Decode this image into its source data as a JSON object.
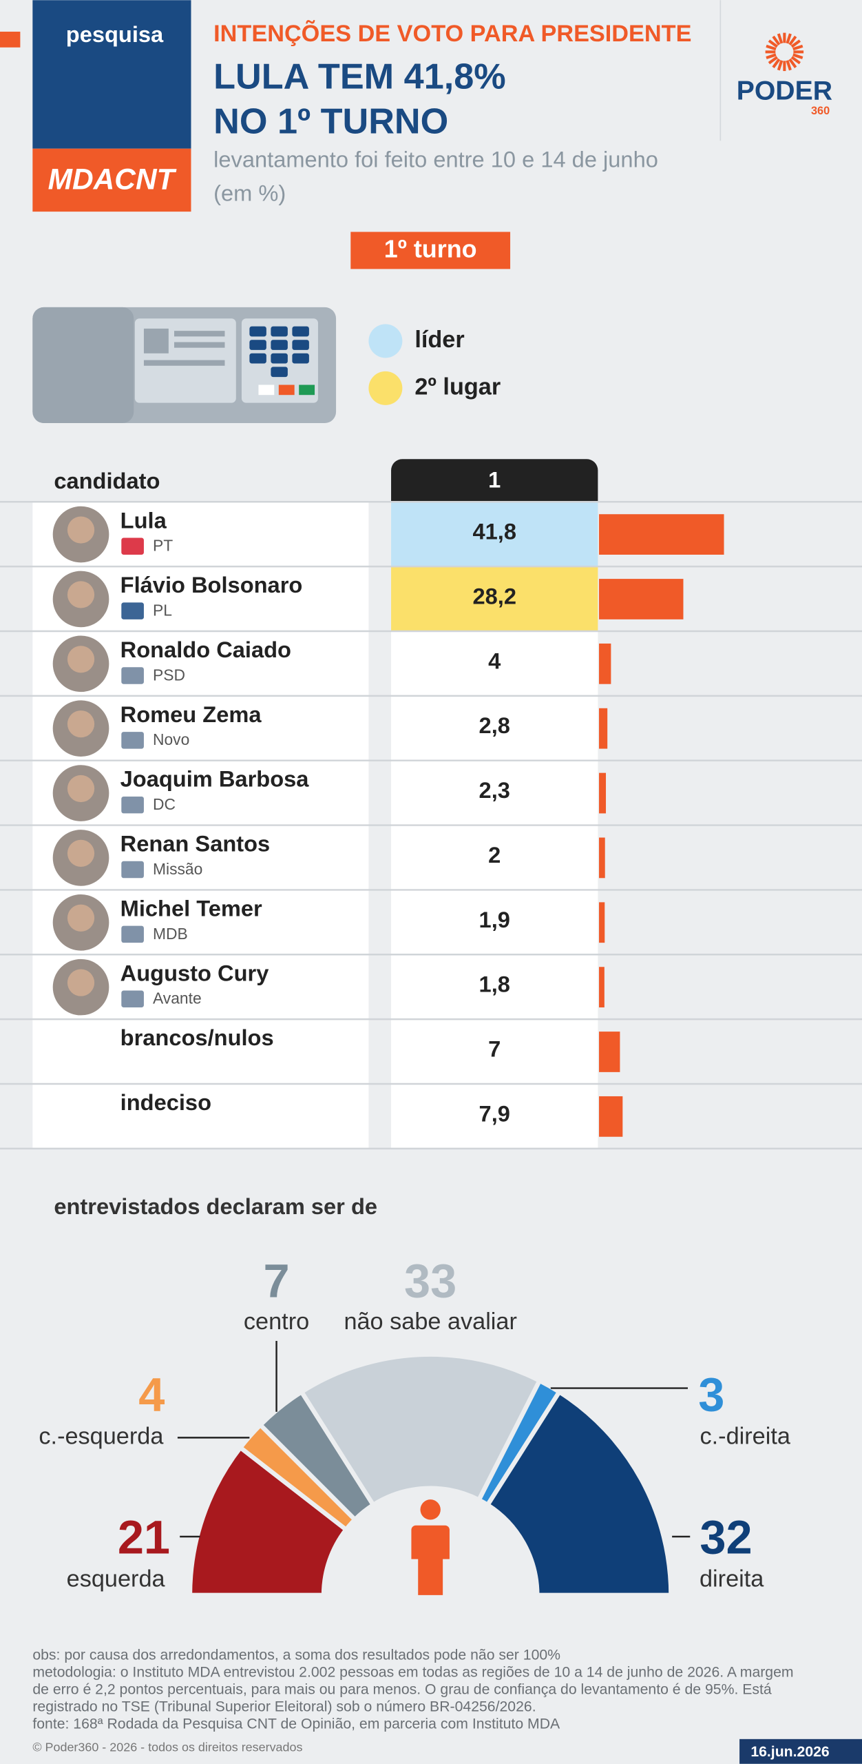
{
  "header": {
    "tag": "pesquisa",
    "brand": "MDACNT",
    "kicker": "INTENÇÕES DE VOTO PARA PRESIDENTE",
    "title_lines": [
      "LULA TEM 41,8%",
      "NO 1º TURNO"
    ],
    "subtitle_lines": [
      "levantamento foi feito entre 10 e 14 de junho",
      "(em %)"
    ],
    "logo": "PODER",
    "logo_sub": "360"
  },
  "round_label": "1º turno",
  "legend": [
    {
      "label": "líder",
      "color": "#bfe3f7"
    },
    {
      "label": "2º lugar",
      "color": "#fbe06a"
    }
  ],
  "table": {
    "column_label": "candidato",
    "round_column": "1",
    "bar_color": "#f05a28",
    "rows": [
      {
        "name": "Lula",
        "party": "PT",
        "value": 41.8,
        "value_label": "41,8"
      },
      {
        "name": "Flávio Bolsonaro",
        "party": "PL",
        "value": 28.2,
        "value_label": "28,2"
      },
      {
        "name": "Ronaldo Caiado",
        "party": "PSD",
        "value": 4
      },
      {
        "name": "Romeu Zema",
        "party": "Novo",
        "value": 2.8,
        "value_label": "2,8"
      },
      {
        "name": "Joaquim Barbosa",
        "party": "DC",
        "value": 2.3,
        "value_label": "2,3"
      },
      {
        "name": "Renan Santos",
        "party": "Missão",
        "value": 2
      },
      {
        "name": "Michel Temer",
        "party": "MDB",
        "value": 1.9,
        "value_label": "1,9"
      },
      {
        "name": "Augusto Cury",
        "party": "Avante",
        "value": 1.8,
        "value_label": "1,8"
      },
      {
        "name": "brancos/nulos",
        "value": 7
      },
      {
        "name": "indeciso",
        "value": 7.9,
        "value_label": "7,9"
      }
    ]
  },
  "ideology": {
    "type": "pie",
    "title": "entrevistados declaram ser de",
    "segments": [
      {
        "name": "esquerda",
        "value": 21,
        "color": "#a8191e"
      },
      {
        "name": "c.-esquerda",
        "value": 4,
        "color": "#f59a4a"
      },
      {
        "name": "centro",
        "value": 7,
        "color": "#7b8d99"
      },
      {
        "name": "não sabe avaliar",
        "value": 33,
        "color": "#c9d1d8"
      },
      {
        "name": "c.-direita",
        "value": 3,
        "color": "#2f8fd8"
      },
      {
        "name": "direita",
        "value": 32,
        "color": "#0f3f78"
      }
    ]
  },
  "footer": {
    "notes": [
      "obs: por causa dos arredondamentos, a soma dos resultados pode não ser 100%",
      "metodologia: o Instituto MDA entrevistou 2.002 pessoas em todas as regiões de 10 a 14 de junho de 2026. A margem",
      "de erro é 2,2 pontos percentuais, para mais ou para menos. O grau de confiança do levantamento é de 95%. Está",
      "registrado no TSE (Tribunal Superior Eleitoral) sob o número BR-04256/2026.",
      "fonte: 168ª Rodada da Pesquisa CNT de Opinião, em parceria com Instituto MDA"
    ],
    "copyright": "© Poder360 - 2026 - todos os direitos reservados",
    "date": "16.jun.2026"
  }
}
